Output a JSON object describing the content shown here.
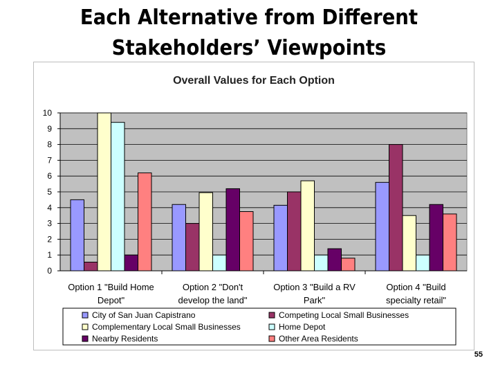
{
  "slide": {
    "title_line1": "Each Alternative from Different",
    "title_line2": "Stakeholders’ Viewpoints",
    "page_number": "55"
  },
  "chart_data": {
    "type": "bar",
    "title": "Overall Values for Each Option",
    "xlabel": "",
    "ylabel": "",
    "ylim": [
      0,
      10
    ],
    "yticks": [
      0,
      1,
      2,
      3,
      4,
      5,
      6,
      7,
      8,
      9,
      10
    ],
    "grid": true,
    "legend_position": "bottom",
    "categories": [
      [
        "Option 1 \"Build Home",
        "Depot\""
      ],
      [
        "Option 2 \"Don't",
        "develop the land\""
      ],
      [
        "Option 3 \"Build a RV",
        "Park\""
      ],
      [
        "Option 4 \"Build",
        "specialty retail\""
      ]
    ],
    "series": [
      {
        "name": "City of San Juan Capistrano",
        "color": "#9999ff",
        "values": [
          4.5,
          4.2,
          4.15,
          5.6
        ]
      },
      {
        "name": "Competing Local Small Businesses",
        "color": "#993366",
        "values": [
          0.55,
          3.0,
          5.0,
          8.0
        ]
      },
      {
        "name": "Complementary Local Small Businesses",
        "color": "#ffffcc",
        "values": [
          10.0,
          4.95,
          5.7,
          3.5
        ]
      },
      {
        "name": "Home Depot",
        "color": "#ccffff",
        "values": [
          9.4,
          1.0,
          1.0,
          1.0
        ]
      },
      {
        "name": "Nearby Residents",
        "color": "#660066",
        "values": [
          1.0,
          5.2,
          1.4,
          4.2
        ]
      },
      {
        "name": "Other Area Residents",
        "color": "#ff8080",
        "values": [
          6.2,
          3.75,
          0.8,
          3.6
        ]
      }
    ],
    "plot_background": "#c0c0c0"
  }
}
